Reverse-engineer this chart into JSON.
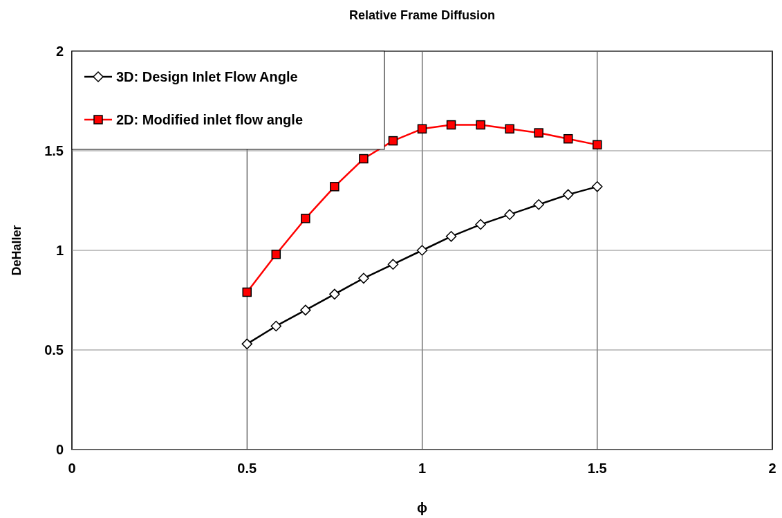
{
  "chart_data": {
    "type": "line",
    "title": "Relative Frame Diffusion",
    "xlabel": "ϕ",
    "ylabel": "DeHaller",
    "x": [
      0.5,
      0.583,
      0.667,
      0.75,
      0.833,
      0.917,
      1,
      1.083,
      1.167,
      1.25,
      1.333,
      1.417,
      1.5
    ],
    "series": [
      {
        "name": "3D: Design Inlet Flow Angle",
        "color": "#000000",
        "marker": "diamond",
        "values": [
          0.53,
          0.62,
          0.7,
          0.78,
          0.86,
          0.93,
          1.0,
          1.07,
          1.13,
          1.18,
          1.23,
          1.28,
          1.32
        ]
      },
      {
        "name": "2D: Modified inlet flow angle",
        "color": "#ff0000",
        "marker": "square",
        "values": [
          0.79,
          0.98,
          1.16,
          1.32,
          1.46,
          1.55,
          1.61,
          1.63,
          1.63,
          1.61,
          1.59,
          1.56,
          1.53
        ]
      }
    ],
    "xlim": [
      0,
      2
    ],
    "xticks": [
      0,
      0.5,
      1,
      1.5,
      2
    ],
    "ylim": [
      0,
      2
    ],
    "yticks": [
      0,
      0.5,
      1,
      1.5,
      2
    ],
    "grid": true,
    "legend": "top left",
    "line_style": "solid"
  }
}
